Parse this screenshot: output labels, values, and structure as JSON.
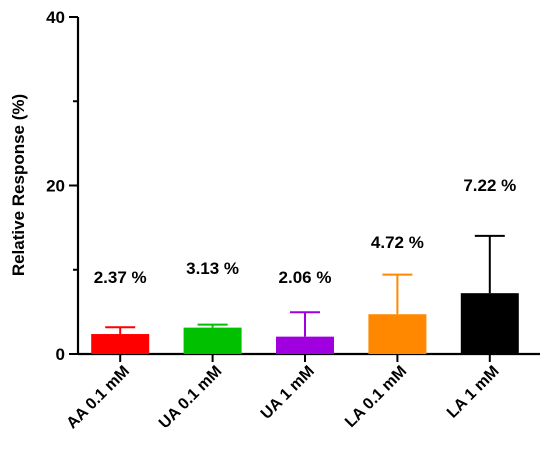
{
  "chart_data": {
    "type": "bar",
    "title": "",
    "xlabel": "",
    "ylabel": "Relative Response (%)",
    "ylim": [
      0,
      40
    ],
    "yticks": [
      0,
      20,
      40
    ],
    "grid": false,
    "categories": [
      "AA 0.1 mM",
      "UA 0.1 mM",
      "UA 1 mM",
      "LA 0.1 mM",
      "LA 1 mM"
    ],
    "values": [
      2.37,
      3.13,
      2.06,
      4.72,
      7.22
    ],
    "errors": [
      0.8,
      0.35,
      2.9,
      4.7,
      6.8
    ],
    "data_labels": [
      "2.37 %",
      "3.13 %",
      "2.06 %",
      "4.72 %",
      "7.22 %"
    ],
    "colors": [
      "#ff0000",
      "#00c000",
      "#a000e0",
      "#ff8800",
      "#000000"
    ]
  }
}
